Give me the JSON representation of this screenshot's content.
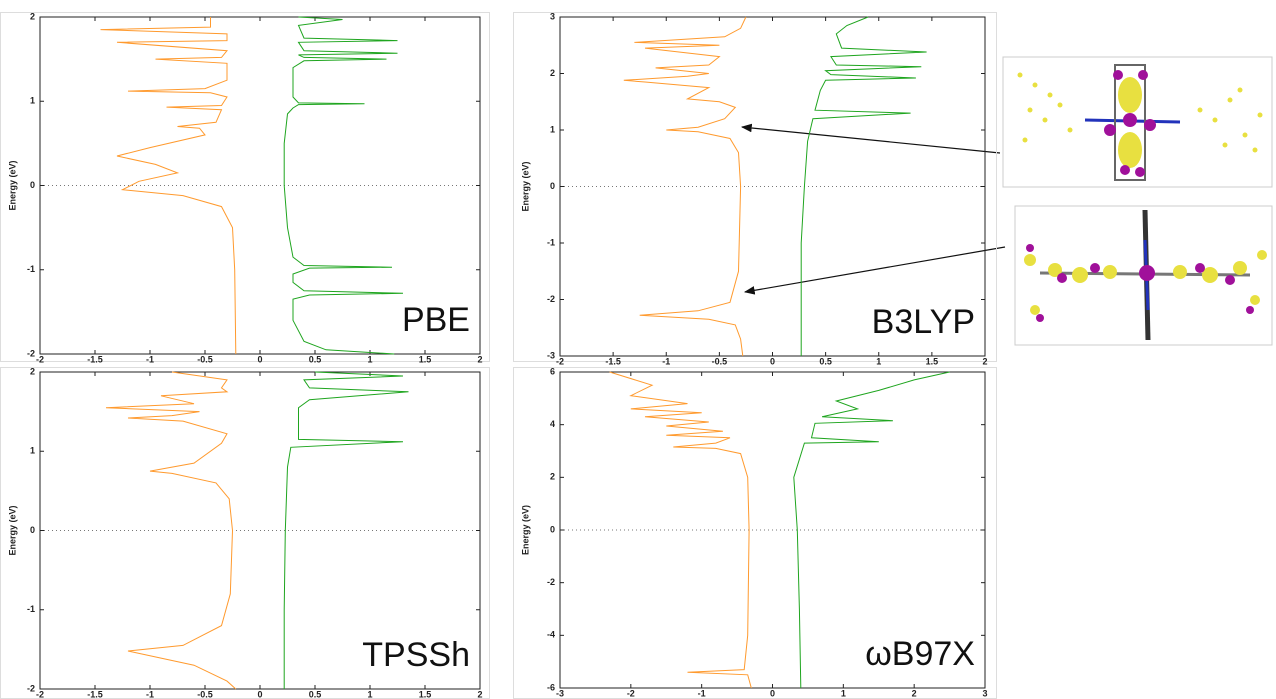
{
  "chart_data": [
    {
      "type": "line",
      "title": "PBE",
      "ylabel": "Energy (eV)",
      "xlim": [
        -2,
        2
      ],
      "ylim": [
        -2,
        2
      ],
      "xticks": [
        -2,
        -1.5,
        -1,
        -0.5,
        0,
        0.5,
        1,
        1.5,
        2
      ],
      "yticks": [
        -2,
        -1,
        0,
        1,
        2
      ],
      "series": [
        {
          "color": "#ff9a2e",
          "x": [
            -0.22,
            -0.23,
            -0.25,
            -0.35,
            -0.7,
            -1.25,
            -1.1,
            -0.75,
            -0.95,
            -1.3,
            -1.0,
            -0.5,
            -0.55,
            -0.75,
            -0.4,
            -0.35,
            -0.85,
            -0.35,
            -0.3,
            -0.45,
            -1.2,
            -0.5,
            -0.3,
            -0.3,
            -0.95,
            -0.35,
            -0.3,
            -1.3,
            -0.3,
            -0.3,
            -1.45,
            -0.45,
            -0.45
          ],
          "values": [
            -2,
            -1.0,
            -0.5,
            -0.25,
            -0.12,
            -0.05,
            0.05,
            0.15,
            0.25,
            0.35,
            0.45,
            0.6,
            0.68,
            0.7,
            0.75,
            0.9,
            0.93,
            0.95,
            1.05,
            1.1,
            1.12,
            1.15,
            1.25,
            1.45,
            1.5,
            1.52,
            1.6,
            1.7,
            1.72,
            1.8,
            1.85,
            1.88,
            2
          ]
        },
        {
          "color": "#1fa51f",
          "x": [
            1.22,
            0.6,
            0.4,
            0.3,
            0.3,
            0.45,
            1.3,
            0.4,
            0.3,
            0.3,
            0.45,
            1.2,
            0.4,
            0.3,
            0.25,
            0.22,
            0.22,
            0.25,
            0.3,
            0.35,
            0.95,
            0.35,
            0.3,
            0.3,
            0.4,
            1.15,
            0.4,
            0.35,
            1.25,
            0.4,
            0.35,
            1.25,
            0.4,
            0.35,
            0.75,
            0.35
          ],
          "values": [
            -2,
            -1.95,
            -1.85,
            -1.6,
            -1.35,
            -1.3,
            -1.28,
            -1.25,
            -1.15,
            -1.05,
            -0.98,
            -0.97,
            -0.95,
            -0.85,
            -0.5,
            0,
            0.5,
            0.85,
            0.92,
            0.96,
            0.97,
            0.98,
            1.05,
            1.4,
            1.48,
            1.5,
            1.52,
            1.55,
            1.57,
            1.6,
            1.7,
            1.72,
            1.75,
            1.9,
            1.97,
            2
          ]
        }
      ]
    },
    {
      "type": "line",
      "title": "B3LYP",
      "ylabel": "Energy (eV)",
      "xlim": [
        -2,
        2
      ],
      "ylim": [
        -3,
        3
      ],
      "xticks": [
        -2,
        -1.5,
        -1,
        -0.5,
        0,
        0.5,
        1,
        1.5,
        2
      ],
      "yticks": [
        -3,
        -2,
        -1,
        0,
        1,
        2,
        3
      ],
      "series": [
        {
          "color": "#ff9a2e",
          "x": [
            -0.28,
            -0.3,
            -0.35,
            -0.6,
            -1.25,
            -0.7,
            -0.4,
            -0.32,
            -0.3,
            -0.32,
            -0.4,
            -0.7,
            -1.0,
            -0.7,
            -0.45,
            -0.35,
            -0.5,
            -0.8,
            -0.6,
            -1.2,
            -1.4,
            -0.8,
            -0.6,
            -1.1,
            -0.6,
            -0.5,
            -1.2,
            -0.5,
            -1.3,
            -0.45,
            -0.3,
            -0.25
          ],
          "values": [
            -3,
            -2.7,
            -2.45,
            -2.35,
            -2.28,
            -2.2,
            -2.05,
            -1.5,
            0,
            0.6,
            0.85,
            0.97,
            1.0,
            1.05,
            1.2,
            1.4,
            1.5,
            1.55,
            1.75,
            1.85,
            1.88,
            1.95,
            2.0,
            2.1,
            2.15,
            2.3,
            2.45,
            2.5,
            2.55,
            2.65,
            2.8,
            3
          ]
        },
        {
          "color": "#1fa51f",
          "x": [
            0.27,
            0.27,
            0.3,
            0.33,
            0.38,
            1.3,
            0.4,
            0.45,
            0.5,
            1.35,
            0.55,
            0.5,
            1.4,
            0.6,
            0.55,
            1.45,
            0.65,
            0.6,
            0.7,
            0.9
          ],
          "values": [
            -3,
            -1,
            0,
            0.8,
            1.2,
            1.3,
            1.35,
            1.7,
            1.88,
            1.92,
            1.98,
            2.05,
            2.12,
            2.15,
            2.3,
            2.38,
            2.45,
            2.7,
            2.85,
            3
          ]
        }
      ]
    },
    {
      "type": "line",
      "title": "TPSSh",
      "ylabel": "Energy (eV)",
      "xlim": [
        -2,
        2
      ],
      "ylim": [
        -2,
        2
      ],
      "xticks": [
        -2,
        -1.5,
        -1,
        -0.5,
        0,
        0.5,
        1,
        1.5,
        2
      ],
      "yticks": [
        -2,
        -1,
        0,
        1,
        2
      ],
      "series": [
        {
          "color": "#ff9a2e",
          "x": [
            -0.22,
            -0.3,
            -0.6,
            -1.0,
            -1.2,
            -0.7,
            -0.35,
            -0.27,
            -0.25,
            -0.28,
            -0.4,
            -0.8,
            -1.0,
            -0.6,
            -0.35,
            -0.3,
            -0.7,
            -1.2,
            -0.8,
            -0.55,
            -1.4,
            -0.6,
            -0.9,
            -0.3,
            -0.35,
            -0.3,
            -0.8
          ],
          "values": [
            -2,
            -1.9,
            -1.7,
            -1.58,
            -1.52,
            -1.45,
            -1.2,
            -0.8,
            0,
            0.4,
            0.6,
            0.72,
            0.75,
            0.85,
            1.1,
            1.22,
            1.38,
            1.42,
            1.45,
            1.5,
            1.55,
            1.6,
            1.7,
            1.75,
            1.8,
            1.9,
            2
          ]
        },
        {
          "color": "#1fa51f",
          "x": [
            0.22,
            0.22,
            0.23,
            0.25,
            0.28,
            1.3,
            0.35,
            0.35,
            0.45,
            1.35,
            0.45,
            0.4,
            1.3,
            0.5
          ],
          "values": [
            -2,
            -1,
            0,
            0.8,
            1.05,
            1.12,
            1.15,
            1.55,
            1.65,
            1.75,
            1.8,
            1.9,
            1.95,
            2
          ]
        }
      ]
    },
    {
      "type": "line",
      "title": "ωB97X",
      "ylabel": "Energy (eV)",
      "xlim": [
        -3,
        3
      ],
      "ylim": [
        -6,
        6
      ],
      "xticks": [
        -3,
        -2,
        -1,
        0,
        1,
        2,
        3
      ],
      "yticks": [
        -6,
        -4,
        -2,
        0,
        2,
        4,
        6
      ],
      "series": [
        {
          "color": "#ff9a2e",
          "x": [
            -0.3,
            -0.35,
            -1.2,
            -0.4,
            -0.35,
            -0.33,
            -0.35,
            -0.45,
            -0.8,
            -1.4,
            -0.8,
            -0.6,
            -1.5,
            -0.7,
            -1.5,
            -0.9,
            -1.8,
            -1.0,
            -2.0,
            -1.2,
            -2.0,
            -1.7,
            -2.3
          ],
          "values": [
            -6,
            -5.5,
            -5.4,
            -5.3,
            -4,
            0,
            2,
            2.9,
            3.1,
            3.15,
            3.3,
            3.5,
            3.6,
            3.75,
            3.95,
            4.1,
            4.3,
            4.45,
            4.6,
            4.8,
            5.1,
            5.5,
            6
          ]
        },
        {
          "color": "#1fa51f",
          "x": [
            0.4,
            0.38,
            0.35,
            0.3,
            0.45,
            1.5,
            0.55,
            0.6,
            1.7,
            0.7,
            1.2,
            0.9,
            1.5,
            2.0,
            2.5
          ],
          "values": [
            -6,
            -3,
            0,
            2,
            3.3,
            3.35,
            3.5,
            4.05,
            4.15,
            4.3,
            4.6,
            4.9,
            5.3,
            5.7,
            6
          ]
        }
      ]
    }
  ]
}
